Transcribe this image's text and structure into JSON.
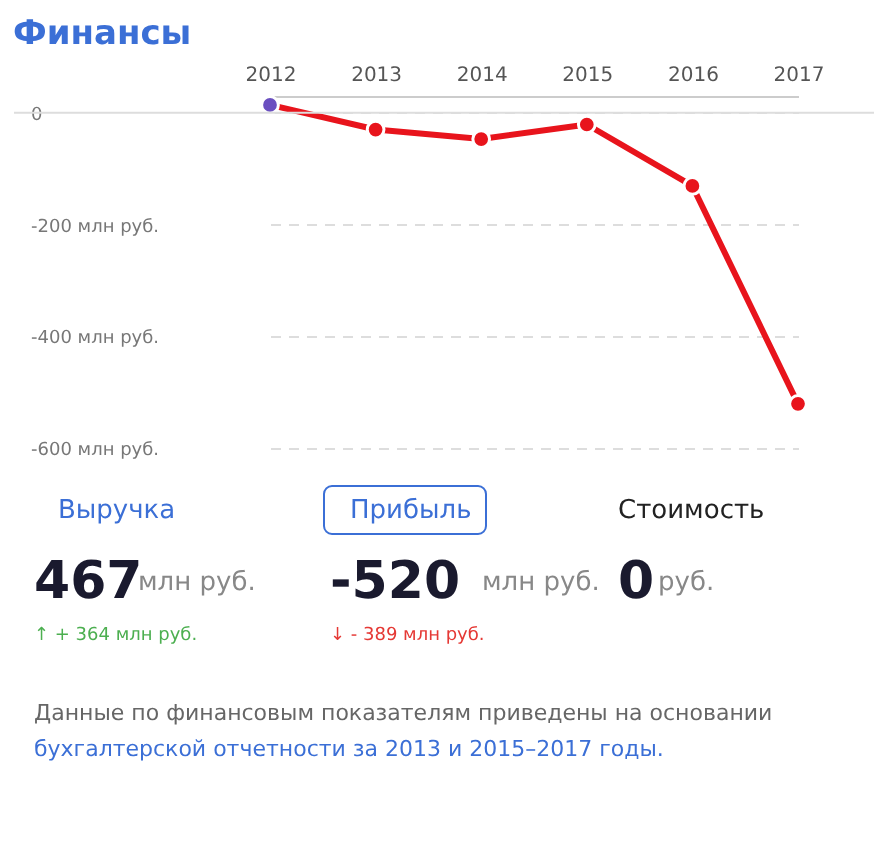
{
  "chart_data": {
    "type": "line",
    "title": "Финансы",
    "categories": [
      "2012",
      "2013",
      "2014",
      "2015",
      "2016",
      "2017"
    ],
    "series": [
      {
        "color": "#e8141c",
        "colors": [
          "#6a4fc0",
          "#e8141c",
          "#e8141c",
          "#e8141c",
          "#e8141c",
          "#e8141c"
        ],
        "values": [
          14,
          -30,
          -47,
          -21,
          -131,
          -521
        ]
      }
    ],
    "ylim": [
      -600,
      30
    ],
    "yticks": [
      {
        "value": 0,
        "label": "0"
      },
      {
        "value": -200,
        "label": "-200 млн руб."
      },
      {
        "value": -400,
        "label": "-400 млн руб."
      },
      {
        "value": -600,
        "label": "-600 млн руб."
      }
    ],
    "grid": "y",
    "marker": "circle",
    "line_style": "solid",
    "annotations": [
      "Выручка",
      "467",
      "млн руб.",
      "↑ + 364 млн руб.",
      "Прибыль",
      "-520",
      "млн руб.",
      "↓ - 389 млн руб.",
      "Стоимость",
      "0",
      "руб.",
      "Данные по финансовым показателям приведены на основании",
      "бухгалтерской отчетности за 2013 и 2015–2017 годы."
    ]
  }
}
